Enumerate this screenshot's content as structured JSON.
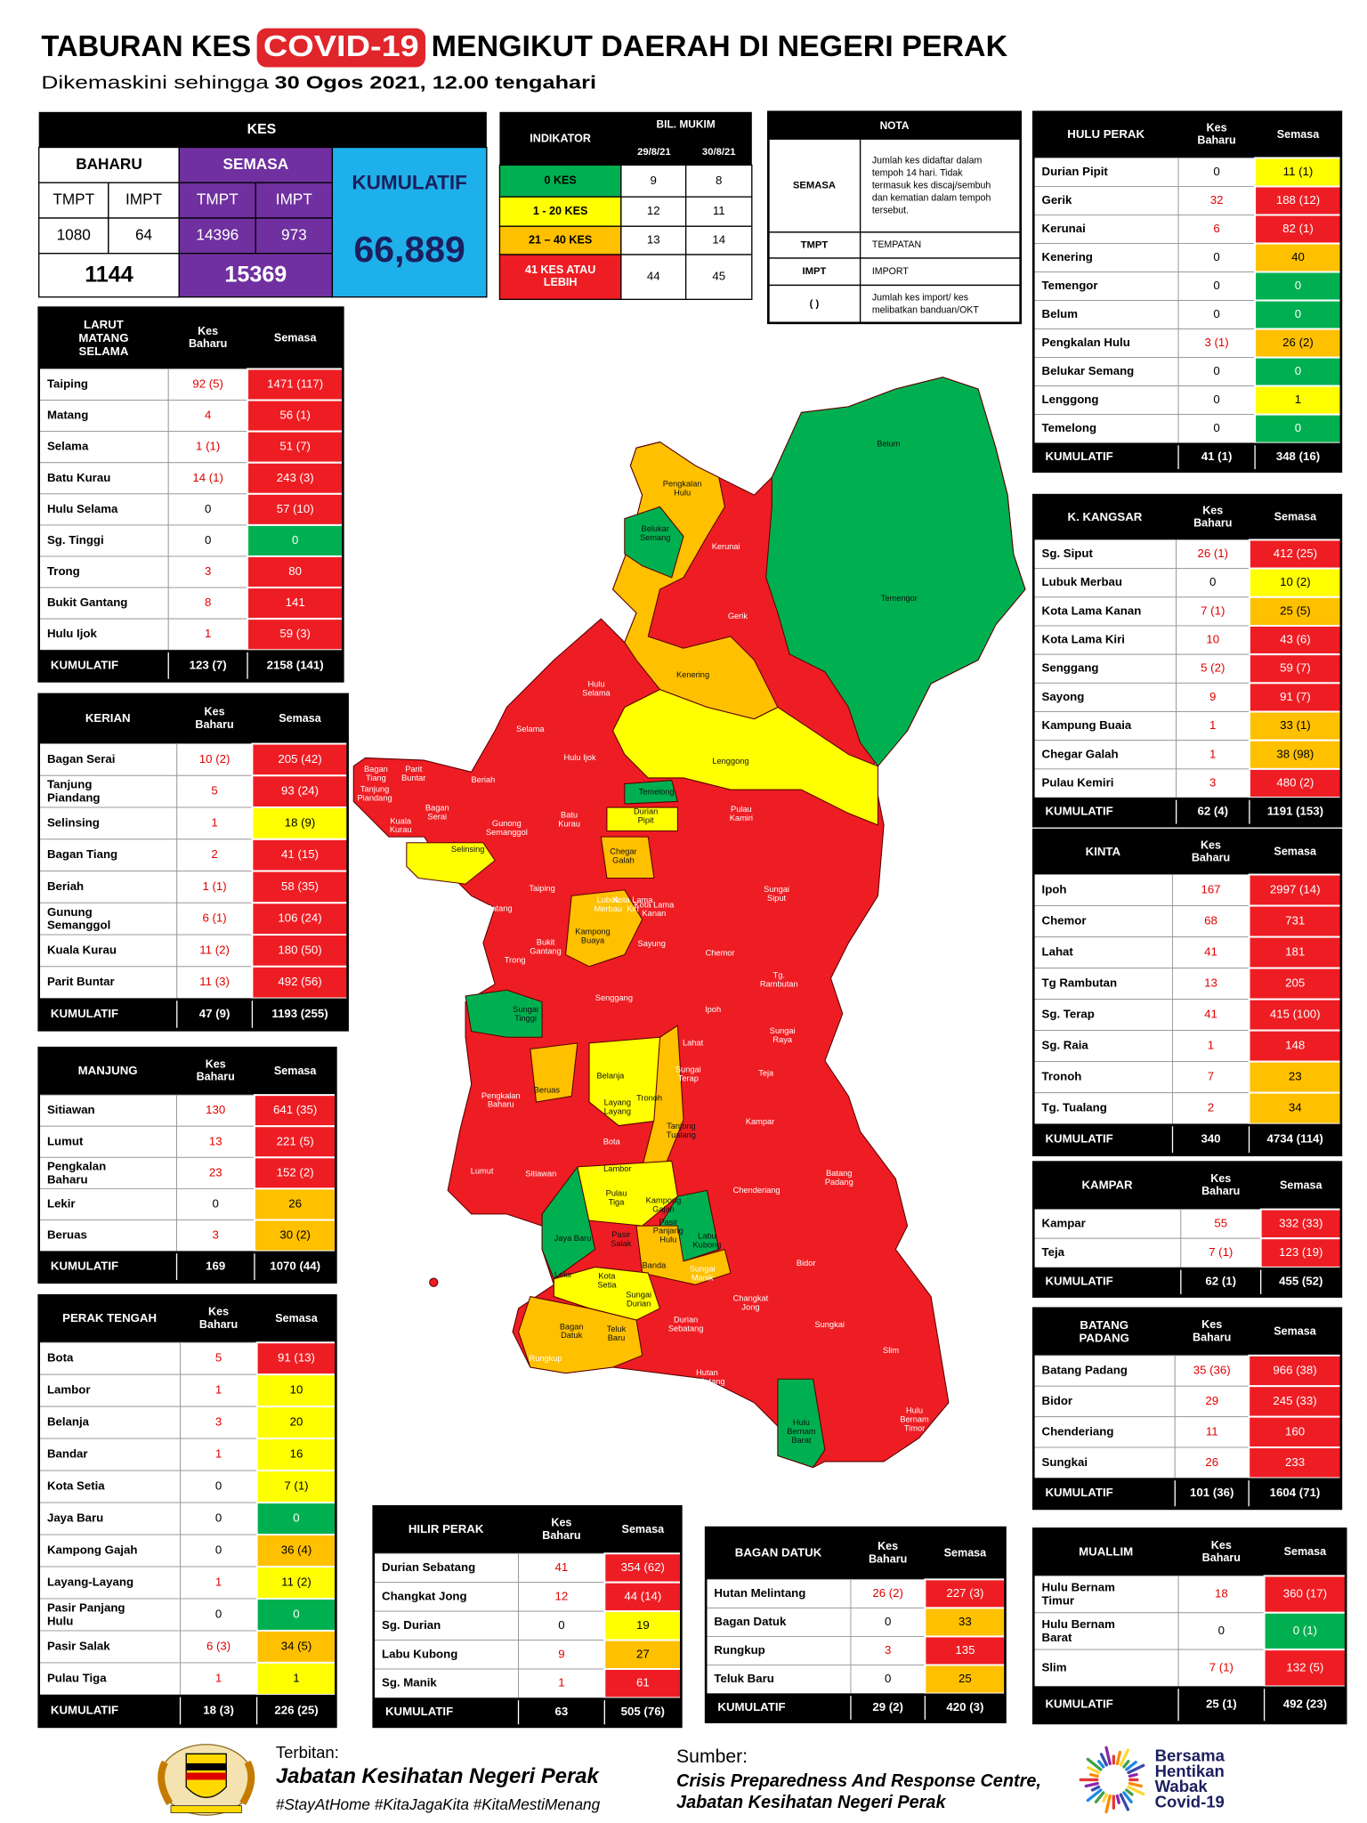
{
  "title": {
    "part1": "TABURAN KES",
    "highlight": "COVID-19",
    "part2": "MENGIKUT DAERAH DI NEGERI PERAK"
  },
  "subtitle": {
    "prefix": "Dikemaskini sehingga",
    "date": "30 Ogos 2021, 12.00 tengahari"
  },
  "summary": {
    "title": "KES",
    "baharu_label": "BAHARU",
    "semasa_label": "SEMASA",
    "sub_labels": [
      "TMPT",
      "IMPT",
      "TMPT",
      "IMPT"
    ],
    "values": [
      "1080",
      "64",
      "14396",
      "973"
    ],
    "totals": [
      "1144",
      "15369"
    ],
    "kumulatif_label": "KUMULATIF",
    "kumulatif": "66,889"
  },
  "indicator": {
    "title": "INDIKATOR",
    "count_label": "BIL. MUKIM",
    "dates": [
      "29/8/21",
      "30/8/21"
    ],
    "rows": [
      [
        "0 KES",
        "9",
        "8",
        "#00b050"
      ],
      [
        "1 - 20 KES",
        "12",
        "11",
        "#ffff00"
      ],
      [
        "21 – 40 KES",
        "13",
        "14",
        "#ffc000"
      ],
      [
        "41 KES ATAU LEBIH",
        "44",
        "45",
        "#ee1d23"
      ]
    ]
  },
  "nota": {
    "title": "NOTA",
    "rows": [
      [
        "SEMASA",
        "Jumlah kes didaftar dalam tempoh 14 hari. Tidak termasuk kes discaj/sembuh dan kematian dalam tempoh tersebut."
      ],
      [
        "TMPT",
        "TEMPATAN"
      ],
      [
        "IMPT",
        "IMPORT"
      ],
      [
        "( )",
        "Jumlah kes import/ kes melibatkan banduan/OKT"
      ]
    ]
  },
  "tables": [
    {
      "title": "LARUT MATANG SELAMA",
      "heads": [
        "Kes Baharu",
        "Semasa"
      ],
      "rows": [
        [
          "Taiping",
          "92 (5)",
          "1471 (117)",
          "#ee1d23"
        ],
        [
          "Matang",
          "4",
          "56 (1)",
          "#ee1d23"
        ],
        [
          "Selama",
          "1 (1)",
          "51 (7)",
          "#ee1d23"
        ],
        [
          "Batu Kurau",
          "14 (1)",
          "243 (3)",
          "#ee1d23"
        ],
        [
          "Hulu Selama",
          "0",
          "57 (10)",
          "#ee1d23"
        ],
        [
          "Sg. Tinggi",
          "0",
          "0",
          "#00b050"
        ],
        [
          "Trong",
          "3",
          "80",
          "#ee1d23"
        ],
        [
          "Bukit Gantang",
          "8",
          "141",
          "#ee1d23"
        ],
        [
          "Hulu Ijok",
          "1",
          "59 (3)",
          "#ee1d23"
        ]
      ],
      "total": [
        "KUMULATIF",
        "123 (7)",
        "2158 (141)"
      ]
    },
    {
      "title": "KERIAN",
      "heads": [
        "Kes Baharu",
        "Semasa"
      ],
      "rows": [
        [
          "Bagan Serai",
          "10 (2)",
          "205 (42)",
          "#ee1d23"
        ],
        [
          "Tanjung Piandang",
          "5",
          "93 (24)",
          "#ee1d23"
        ],
        [
          "Selinsing",
          "1",
          "18 (9)",
          "#ffff00"
        ],
        [
          "Bagan Tiang",
          "2",
          "41 (15)",
          "#ee1d23"
        ],
        [
          "Beriah",
          "1 (1)",
          "58 (35)",
          "#ee1d23"
        ],
        [
          "Gunung Semanggol",
          "6 (1)",
          "106 (24)",
          "#ee1d23"
        ],
        [
          "Kuala Kurau",
          "11 (2)",
          "180 (50)",
          "#ee1d23"
        ],
        [
          "Parit Buntar",
          "11 (3)",
          "492 (56)",
          "#ee1d23"
        ]
      ],
      "total": [
        "KUMULATIF",
        "47 (9)",
        "1193 (255)"
      ]
    },
    {
      "title": "MANJUNG",
      "heads": [
        "Kes Baharu",
        "Semasa"
      ],
      "rows": [
        [
          "Sitiawan",
          "130",
          "641 (35)",
          "#ee1d23"
        ],
        [
          "Lumut",
          "13",
          "221 (5)",
          "#ee1d23"
        ],
        [
          "Pengkalan Baharu",
          "23",
          "152 (2)",
          "#ee1d23"
        ],
        [
          "Lekir",
          "0",
          "26",
          "#ffc000"
        ],
        [
          "Beruas",
          "3",
          "30 (2)",
          "#ffc000"
        ]
      ],
      "total": [
        "KUMULATIF",
        "169",
        "1070 (44)"
      ]
    },
    {
      "title": "PERAK TENGAH",
      "heads": [
        "Kes Baharu",
        "Semasa"
      ],
      "rows": [
        [
          "Bota",
          "5",
          "91 (13)",
          "#ee1d23"
        ],
        [
          "Lambor",
          "1",
          "10",
          "#ffff00"
        ],
        [
          "Belanja",
          "3",
          "20",
          "#ffff00"
        ],
        [
          "Bandar",
          "1",
          "16",
          "#ffff00"
        ],
        [
          "Kota Setia",
          "0",
          "7 (1)",
          "#ffff00"
        ],
        [
          "Jaya Baru",
          "0",
          "0",
          "#00b050"
        ],
        [
          "Kampong Gajah",
          "0",
          "36 (4)",
          "#ffc000"
        ],
        [
          "Layang-Layang",
          "1",
          "11 (2)",
          "#ffff00"
        ],
        [
          "Pasir Panjang Hulu",
          "0",
          "0",
          "#00b050"
        ],
        [
          "Pasir Salak",
          "6 (3)",
          "34 (5)",
          "#ffc000"
        ],
        [
          "Pulau Tiga",
          "1",
          "1",
          "#ffff00"
        ]
      ],
      "total": [
        "KUMULATIF",
        "18 (3)",
        "226 (25)"
      ]
    },
    {
      "title": "HILIR PERAK",
      "heads": [
        "Kes Baharu",
        "Semasa"
      ],
      "rows": [
        [
          "Durian Sebatang",
          "41",
          "354 (62)",
          "#ee1d23"
        ],
        [
          "Changkat Jong",
          "12",
          "44 (14)",
          "#ee1d23"
        ],
        [
          "Sg. Durian",
          "0",
          "19",
          "#ffff00"
        ],
        [
          "Labu Kubong",
          "9",
          "27",
          "#ffc000"
        ],
        [
          "Sg. Manik",
          "1",
          "61",
          "#ee1d23"
        ]
      ],
      "total": [
        "KUMULATIF",
        "63",
        "505 (76)"
      ]
    },
    {
      "title": "BAGAN DATUK",
      "heads": [
        "Kes Baharu",
        "Semasa"
      ],
      "rows": [
        [
          "Hutan Melintang",
          "26 (2)",
          "227 (3)",
          "#ee1d23"
        ],
        [
          "Bagan Datuk",
          "0",
          "33",
          "#ffc000"
        ],
        [
          "Rungkup",
          "3",
          "135",
          "#ee1d23"
        ],
        [
          "Teluk Baru",
          "0",
          "25",
          "#ffc000"
        ]
      ],
      "total": [
        "KUMULATIF",
        "29 (2)",
        "420 (3)"
      ]
    },
    {
      "title": "MUALLIM",
      "heads": [
        "Kes Baharu",
        "Semasa"
      ],
      "rows": [
        [
          "Hulu Bernam Timur",
          "18",
          "360 (17)",
          "#ee1d23"
        ],
        [
          "Hulu Bernam Barat",
          "0",
          "0 (1)",
          "#00b050"
        ],
        [
          "Slim",
          "7 (1)",
          "132 (5)",
          "#ee1d23"
        ]
      ],
      "total": [
        "KUMULATIF",
        "25 (1)",
        "492 (23)"
      ]
    },
    {
      "title": "HULU PERAK",
      "heads": [
        "Kes Baharu",
        "Semasa"
      ],
      "rows": [
        [
          "Durian Pipit",
          "0",
          "11 (1)",
          "#ffff00"
        ],
        [
          "Gerik",
          "32",
          "188 (12)",
          "#ee1d23"
        ],
        [
          "Kerunai",
          "6",
          "82 (1)",
          "#ee1d23"
        ],
        [
          "Kenering",
          "0",
          "40",
          "#ffc000"
        ],
        [
          "Temengor",
          "0",
          "0",
          "#00b050"
        ],
        [
          "Belum",
          "0",
          "0",
          "#00b050"
        ],
        [
          "Pengkalan Hulu",
          "3 (1)",
          "26 (2)",
          "#ffc000"
        ],
        [
          "Belukar Semang",
          "0",
          "0",
          "#00b050"
        ],
        [
          "Lenggong",
          "0",
          "1",
          "#ffff00"
        ],
        [
          "Temelong",
          "0",
          "0",
          "#00b050"
        ]
      ],
      "total": [
        "KUMULATIF",
        "41 (1)",
        "348 (16)"
      ]
    },
    {
      "title": "K. KANGSAR",
      "heads": [
        "Kes Baharu",
        "Semasa"
      ],
      "rows": [
        [
          "Sg. Siput",
          "26 (1)",
          "412 (25)",
          "#ee1d23"
        ],
        [
          "Lubuk Merbau",
          "0",
          "10 (2)",
          "#ffff00"
        ],
        [
          "Kota Lama Kanan",
          "7 (1)",
          "25 (5)",
          "#ffc000"
        ],
        [
          "Kota Lama Kiri",
          "10",
          "43 (6)",
          "#ee1d23"
        ],
        [
          "Senggang",
          "5 (2)",
          "59 (7)",
          "#ee1d23"
        ],
        [
          "Sayong",
          "9",
          "91 (7)",
          "#ee1d23"
        ],
        [
          "Kampung Buaia",
          "1",
          "33 (1)",
          "#ffc000"
        ],
        [
          "Chegar Galah",
          "1",
          "38 (98)",
          "#ffc000"
        ],
        [
          "Pulau Kemiri",
          "3",
          "480 (2)",
          "#ee1d23"
        ]
      ],
      "total": [
        "KUMULATIF",
        "62 (4)",
        "1191 (153)"
      ]
    },
    {
      "title": "KINTA",
      "heads": [
        "Kes Baharu",
        "Semasa"
      ],
      "rows": [
        [
          "Ipoh",
          "167",
          "2997 (14)",
          "#ee1d23"
        ],
        [
          "Chemor",
          "68",
          "731",
          "#ee1d23"
        ],
        [
          "Lahat",
          "41",
          "181",
          "#ee1d23"
        ],
        [
          "Tg Rambutan",
          "13",
          "205",
          "#ee1d23"
        ],
        [
          "Sg. Terap",
          "41",
          "415 (100)",
          "#ee1d23"
        ],
        [
          "Sg. Raia",
          "1",
          "148",
          "#ee1d23"
        ],
        [
          "Tronoh",
          "7",
          "23",
          "#ffc000"
        ],
        [
          "Tg. Tualang",
          "2",
          "34",
          "#ffc000"
        ]
      ],
      "total": [
        "KUMULATIF",
        "340",
        "4734 (114)"
      ]
    },
    {
      "title": "KAMPAR",
      "heads": [
        "Kes Baharu",
        "Semasa"
      ],
      "rows": [
        [
          "Kampar",
          "55",
          "332 (33)",
          "#ee1d23"
        ],
        [
          "Teja",
          "7 (1)",
          "123 (19)",
          "#ee1d23"
        ]
      ],
      "total": [
        "KUMULATIF",
        "62 (1)",
        "455 (52)"
      ]
    },
    {
      "title": "BATANG PADANG",
      "heads": [
        "Kes Baharu",
        "Semasa"
      ],
      "rows": [
        [
          "Batang Padang",
          "35 (36)",
          "966 (38)",
          "#ee1d23"
        ],
        [
          "Bidor",
          "29",
          "245 (33)",
          "#ee1d23"
        ],
        [
          "Chenderiang",
          "11",
          "160",
          "#ee1d23"
        ],
        [
          "Sungkai",
          "26",
          "233",
          "#ee1d23"
        ]
      ],
      "total": [
        "KUMULATIF",
        "101 (36)",
        "1604 (71)"
      ]
    }
  ],
  "map_labels": [
    "Belum",
    "Pengkalan Hulu",
    "Belukar Semang",
    "Kerunai",
    "Temengor",
    "Gerik",
    "Kenering",
    "Hulu Selama",
    "Selama",
    "Hulu Ijok",
    "Lenggong",
    "Temelong",
    "Durian Pipit",
    "Pulau Kamiri",
    "Bagan Tiang",
    "Parit Buntar",
    "Tanjung Piandang",
    "Beriah",
    "Bagan Serai",
    "Kuala Kurau",
    "Gunong Semanggol",
    "Batu Kurau",
    "Selinsing",
    "Chegar Galah",
    "Taiping",
    "Sungai Siput",
    "Lubok Merbau",
    "Kota Lama Kiri",
    "Kota Lama Kanan",
    "Matang",
    "Kampong Buaya",
    "Sayung",
    "Bukit Gantang",
    "Trong",
    "Chemor",
    "Tg. Rambutan",
    "Senggang",
    "Sungai Tinggi",
    "Ipoh",
    "Sungai Raya",
    "Lahat",
    "Sungai Terap",
    "Teja",
    "Belanja",
    "Beruas",
    "Pengkalan Baharu",
    "Layang Layang",
    "Tronoh",
    "Tanjong Tualang",
    "Kampar",
    "Bota",
    "Lumut",
    "Sitiawan",
    "Lambor",
    "Batang Padang",
    "Chenderiang",
    "Pulau Tiga",
    "Kampong Gajah",
    "Pasir Panjang Hulu",
    "Jaya Baru",
    "Pasir Salak",
    "Labu Kubong",
    "Bidor",
    "Banda",
    "Sungai Manik",
    "Lekir",
    "Kota Setia",
    "Changkat Jong",
    "Sungai Durian",
    "Durian Sebatang",
    "Sungkai",
    "Bagan Datuk",
    "Teluk Baru",
    "Slim",
    "Rungkup",
    "Hutan Melintang",
    "Hulu Bernam Barat",
    "Hulu Bernam Timor"
  ],
  "footer": {
    "published_label": "Terbitan:",
    "publisher": "Jabatan Kesihatan Negeri Perak",
    "hashtags": "#StayAtHome #KitaJagaKita #KitaMestiMenang",
    "source_label": "Sumber:",
    "source": "Crisis Preparedness And Response Centre, Jabatan Kesihatan Negeri Perak",
    "campaign": "Bersama Hentikan Wabak Covid-19"
  }
}
